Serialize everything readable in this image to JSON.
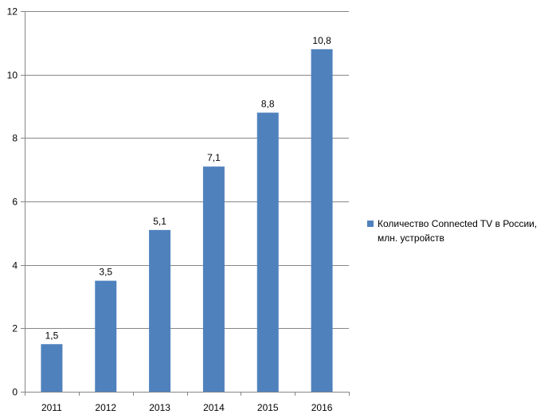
{
  "chart_data": {
    "type": "bar",
    "categories": [
      "2011",
      "2012",
      "2013",
      "2014",
      "2015",
      "2016"
    ],
    "series": [
      {
        "name": "Количество Connected TV в России, млн. устройств",
        "values": [
          1.5,
          3.5,
          5.1,
          7.1,
          8.8,
          10.8
        ],
        "labels": [
          "1,5",
          "3,5",
          "5,1",
          "7,1",
          "8,8",
          "10,8"
        ],
        "color": "#4F81BD"
      }
    ],
    "title": "",
    "xlabel": "",
    "ylabel": "",
    "ylim": [
      0,
      12
    ],
    "yticks": [
      "0",
      "2",
      "4",
      "6",
      "8",
      "10",
      "12"
    ],
    "grid": true,
    "legend_position": "right"
  }
}
